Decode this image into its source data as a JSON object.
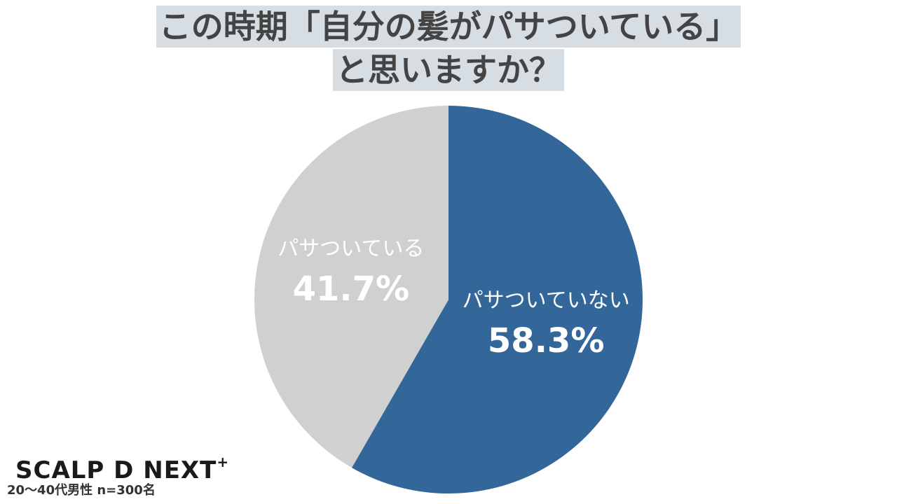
{
  "title": {
    "line1": "この時期「自分の髪がパサついている」",
    "line2": "と思いますか？"
  },
  "chart_data": {
    "type": "pie",
    "title": "この時期「自分の髪がパサついている」と思いますか？",
    "slices": [
      {
        "label": "パサついていない",
        "value": 58.3,
        "value_label": "58.3%",
        "color": "#336699"
      },
      {
        "label": "パサついている",
        "value": 41.7,
        "value_label": "41.7%",
        "color": "#d0d0d0"
      }
    ]
  },
  "footer": {
    "brand": "SCALP D NEXT",
    "brand_sup": "+",
    "sample_note": "20〜40代男性 n=300名"
  }
}
